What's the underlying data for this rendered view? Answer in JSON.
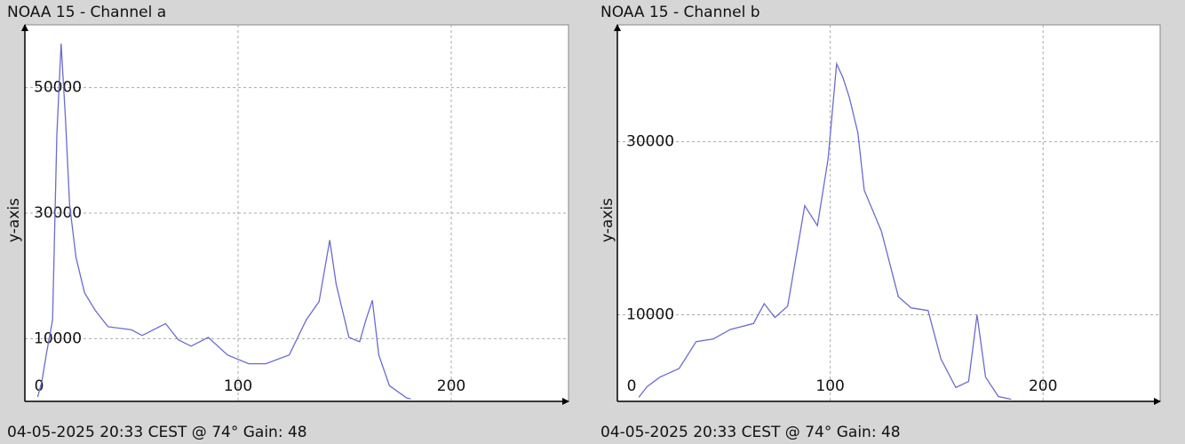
{
  "chart_data": [
    {
      "type": "line",
      "title": "NOAA 15 - Channel a",
      "ylabel": "y-axis",
      "caption": "04-05-2025 20:33 CEST @ 74° Gain: 48",
      "xlim": [
        0,
        255
      ],
      "xticks": [
        0,
        100,
        200
      ],
      "ylim": [
        0,
        60000
      ],
      "yticks": [
        10000,
        30000,
        50000
      ],
      "grid": true,
      "series": [
        {
          "color": "#6b6bd0",
          "x": [
            6,
            8,
            10,
            13,
            15,
            17,
            19,
            21,
            24,
            28,
            33,
            39,
            50,
            55,
            66,
            72,
            78,
            86,
            95,
            105,
            113,
            124,
            132,
            138,
            143,
            146,
            152,
            157,
            160,
            163,
            166,
            171,
            179,
            181
          ],
          "values": [
            700,
            3200,
            7400,
            13000,
            42500,
            57000,
            45300,
            31300,
            22900,
            17300,
            14500,
            11900,
            11400,
            10500,
            12400,
            9800,
            8800,
            10200,
            7400,
            6000,
            6000,
            7400,
            13000,
            15900,
            25700,
            18700,
            10200,
            9500,
            13000,
            16100,
            7400,
            2500,
            560,
            400
          ]
        }
      ]
    },
    {
      "type": "line",
      "title": "NOAA 15 - Channel b",
      "ylabel": "y-axis",
      "caption": "04-05-2025 20:33 CEST @ 74° Gain: 48",
      "xlim": [
        0,
        255
      ],
      "xticks": [
        0,
        100,
        200
      ],
      "ylim": [
        0,
        43500
      ],
      "yticks": [
        10000,
        30000
      ],
      "grid": true,
      "series": [
        {
          "color": "#6b6bd0",
          "x": [
            10,
            14,
            20,
            29,
            37,
            45,
            53,
            64,
            69,
            74,
            80,
            88,
            94,
            99,
            103,
            106,
            109,
            113,
            116,
            124,
            132,
            138,
            146,
            152,
            159,
            165,
            169,
            173,
            179,
            185
          ],
          "values": [
            460,
            1700,
            2800,
            3800,
            6900,
            7200,
            8300,
            9000,
            11300,
            9700,
            11000,
            22600,
            20300,
            28000,
            39000,
            37400,
            35100,
            31000,
            24400,
            19700,
            12100,
            10800,
            10500,
            4900,
            1600,
            2300,
            10000,
            2800,
            560,
            250
          ]
        }
      ]
    }
  ]
}
